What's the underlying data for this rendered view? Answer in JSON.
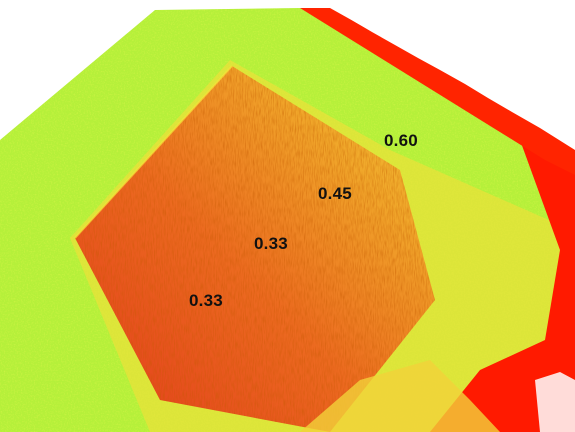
{
  "map": {
    "value_labels": [
      "0.60",
      "0.45",
      "0.33",
      "0.33"
    ],
    "colors": {
      "background": "#ffffff",
      "high_vigor_green": "#b5f03a",
      "mid_yellow": "#f2d23a",
      "orange": "#ee8a1f",
      "low_red": "#e2321c",
      "bare_red": "#ff1a00",
      "label_text": "#111111"
    }
  }
}
